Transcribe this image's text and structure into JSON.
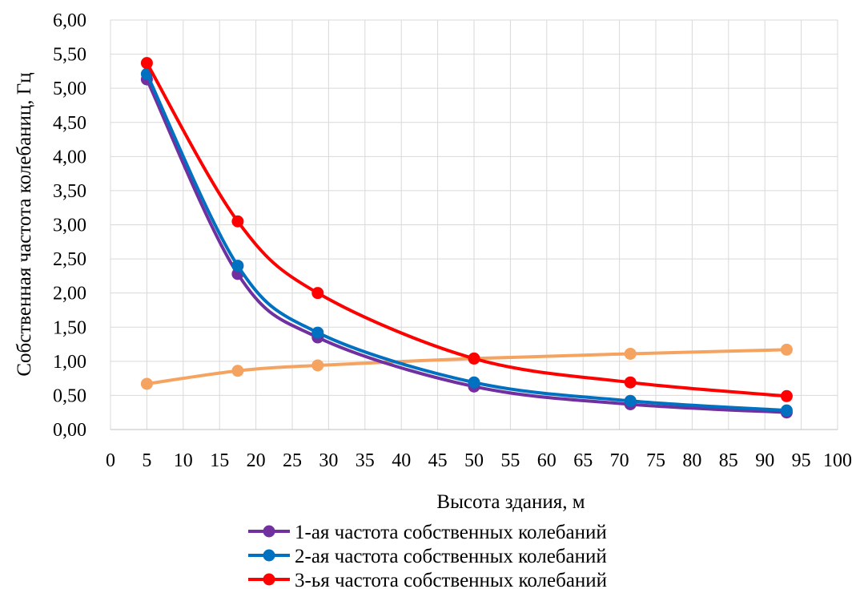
{
  "chart_data": {
    "type": "line",
    "title": "",
    "xlabel": "Высота здания, м",
    "ylabel": "Собственная частота колебаниц, Гц",
    "xlim": [
      0,
      100
    ],
    "ylim": [
      0,
      6
    ],
    "x_ticks": [
      "0",
      "5",
      "10",
      "15",
      "20",
      "25",
      "30",
      "35",
      "40",
      "45",
      "50",
      "55",
      "60",
      "65",
      "70",
      "75",
      "80",
      "85",
      "90",
      "95",
      "100"
    ],
    "y_ticks": [
      "0,00",
      "0,50",
      "1,00",
      "1,50",
      "2,00",
      "2,50",
      "3,00",
      "3,50",
      "4,00",
      "4,50",
      "5,00",
      "5,50",
      "6,00"
    ],
    "grid": true,
    "legend_position": "bottom",
    "series": [
      {
        "name": "1-ая частота собственных колебаний",
        "color": "#7030a0",
        "x": [
          5,
          17.5,
          28.5,
          50,
          71.5,
          93
        ],
        "y": [
          5.13,
          2.28,
          1.35,
          0.63,
          0.37,
          0.25
        ]
      },
      {
        "name": "2-ая частота собственных колебаний",
        "color": "#0070c0",
        "x": [
          5,
          17.5,
          28.5,
          50,
          71.5,
          93
        ],
        "y": [
          5.21,
          2.4,
          1.42,
          0.69,
          0.42,
          0.28
        ]
      },
      {
        "name": "3-ья частота собственных колебаний",
        "color": "#ff0000",
        "x": [
          5,
          17.5,
          28.5,
          50,
          71.5,
          93
        ],
        "y": [
          5.37,
          3.05,
          2.0,
          1.04,
          0.69,
          0.49
        ]
      },
      {
        "name": "",
        "color": "#f4a460",
        "x": [
          5,
          17.5,
          28.5,
          50,
          71.5,
          93
        ],
        "y": [
          0.67,
          0.86,
          0.94,
          1.04,
          1.11,
          1.17
        ]
      }
    ]
  }
}
